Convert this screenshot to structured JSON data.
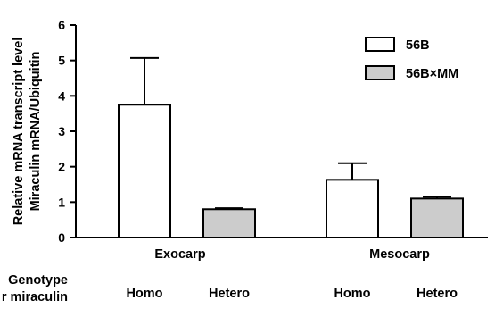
{
  "chart_data": {
    "type": "bar",
    "ylabel_line1": "Relative mRNA transcript level",
    "ylabel_line2": "Miraculin mRNA/Ubiquitin",
    "ylim": [
      0,
      6
    ],
    "yticks": [
      "0",
      "1",
      "2",
      "3",
      "4",
      "5",
      "6"
    ],
    "categories": [
      "Exocarp",
      "Mesocarp"
    ],
    "series": [
      {
        "name": "56B",
        "color": "#ffffff",
        "values": [
          3.75,
          1.63
        ],
        "errors": [
          1.32,
          0.47
        ]
      },
      {
        "name": "56B×MM",
        "color": "#cccccc",
        "values": [
          0.8,
          1.1
        ],
        "errors": [
          0.03,
          0.05
        ]
      }
    ],
    "genotype_label_line1": "Genotype",
    "genotype_label_line2": "r miraculin",
    "genotypes": [
      "Homo",
      "Hetero",
      "Homo",
      "Hetero"
    ],
    "grid": false,
    "legend_position": "top-right"
  }
}
